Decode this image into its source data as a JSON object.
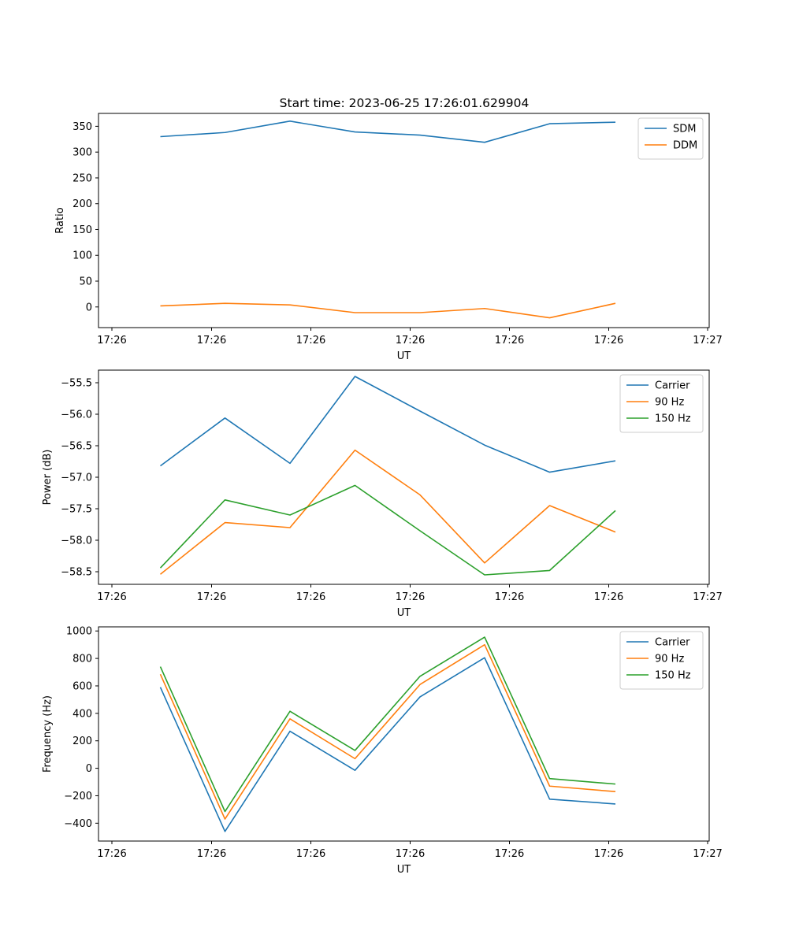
{
  "figure": {
    "title": "Start time: 2023-06-25 17:26:01.629904"
  },
  "colors": {
    "blue": "#1f77b4",
    "orange": "#ff7f0e",
    "green": "#2ca02c"
  },
  "chart_data": [
    {
      "type": "line",
      "title": "Start time: 2023-06-25 17:26:01.629904",
      "xlabel": "UT",
      "ylabel": "Ratio",
      "x_tick_labels": [
        "17:26",
        "17:26",
        "17:26",
        "17:26",
        "17:26",
        "17:26",
        "17:27"
      ],
      "ylim": [
        -40,
        375
      ],
      "yticks": [
        0,
        50,
        100,
        150,
        200,
        250,
        300,
        350
      ],
      "legend": "top-right",
      "grid": false,
      "series": [
        {
          "name": "SDM",
          "color": "#1f77b4",
          "values": [
            330,
            338,
            360,
            339,
            333,
            319,
            355,
            358
          ]
        },
        {
          "name": "DDM",
          "color": "#ff7f0e",
          "values": [
            2,
            7,
            4,
            -11,
            -11,
            -3,
            -21,
            7
          ]
        }
      ]
    },
    {
      "type": "line",
      "xlabel": "UT",
      "ylabel": "Power (dB)",
      "x_tick_labels": [
        "17:26",
        "17:26",
        "17:26",
        "17:26",
        "17:26",
        "17:26",
        "17:27"
      ],
      "ylim": [
        -58.7,
        -55.3
      ],
      "yticks": [
        -58.5,
        -58.0,
        -57.5,
        -57.0,
        -56.5,
        -56.0,
        -55.5
      ],
      "ytick_labels": [
        "−58.5",
        "−58.0",
        "−57.5",
        "−57.0",
        "−56.5",
        "−56.0",
        "−55.5"
      ],
      "legend": "top-right",
      "grid": false,
      "series": [
        {
          "name": "Carrier",
          "color": "#1f77b4",
          "values": [
            -56.82,
            -56.06,
            -56.78,
            -55.4,
            -55.95,
            -56.49,
            -56.92,
            -56.74
          ]
        },
        {
          "name": "90 Hz",
          "color": "#ff7f0e",
          "values": [
            -58.54,
            -57.72,
            -57.8,
            -56.57,
            -57.28,
            -58.36,
            -57.45,
            -57.87
          ]
        },
        {
          "name": "150 Hz",
          "color": "#2ca02c",
          "values": [
            -58.44,
            -57.36,
            -57.6,
            -57.13,
            -57.85,
            -58.55,
            -58.48,
            -57.53
          ]
        }
      ]
    },
    {
      "type": "line",
      "xlabel": "UT",
      "ylabel": "Frequency (Hz)",
      "x_tick_labels": [
        "17:26",
        "17:26",
        "17:26",
        "17:26",
        "17:26",
        "17:26",
        "17:27"
      ],
      "ylim": [
        -530,
        1030
      ],
      "yticks": [
        -400,
        -200,
        0,
        200,
        400,
        600,
        800,
        1000
      ],
      "ytick_labels": [
        "−400",
        "−200",
        "0",
        "200",
        "400",
        "600",
        "800",
        "1000"
      ],
      "legend": "top-right",
      "grid": false,
      "series": [
        {
          "name": "Carrier",
          "color": "#1f77b4",
          "values": [
            590,
            -460,
            270,
            -15,
            520,
            805,
            -225,
            -260
          ]
        },
        {
          "name": "90 Hz",
          "color": "#ff7f0e",
          "values": [
            685,
            -370,
            360,
            70,
            610,
            900,
            -130,
            -170
          ]
        },
        {
          "name": "150 Hz",
          "color": "#2ca02c",
          "values": [
            740,
            -315,
            415,
            130,
            670,
            955,
            -75,
            -115
          ]
        }
      ]
    }
  ]
}
